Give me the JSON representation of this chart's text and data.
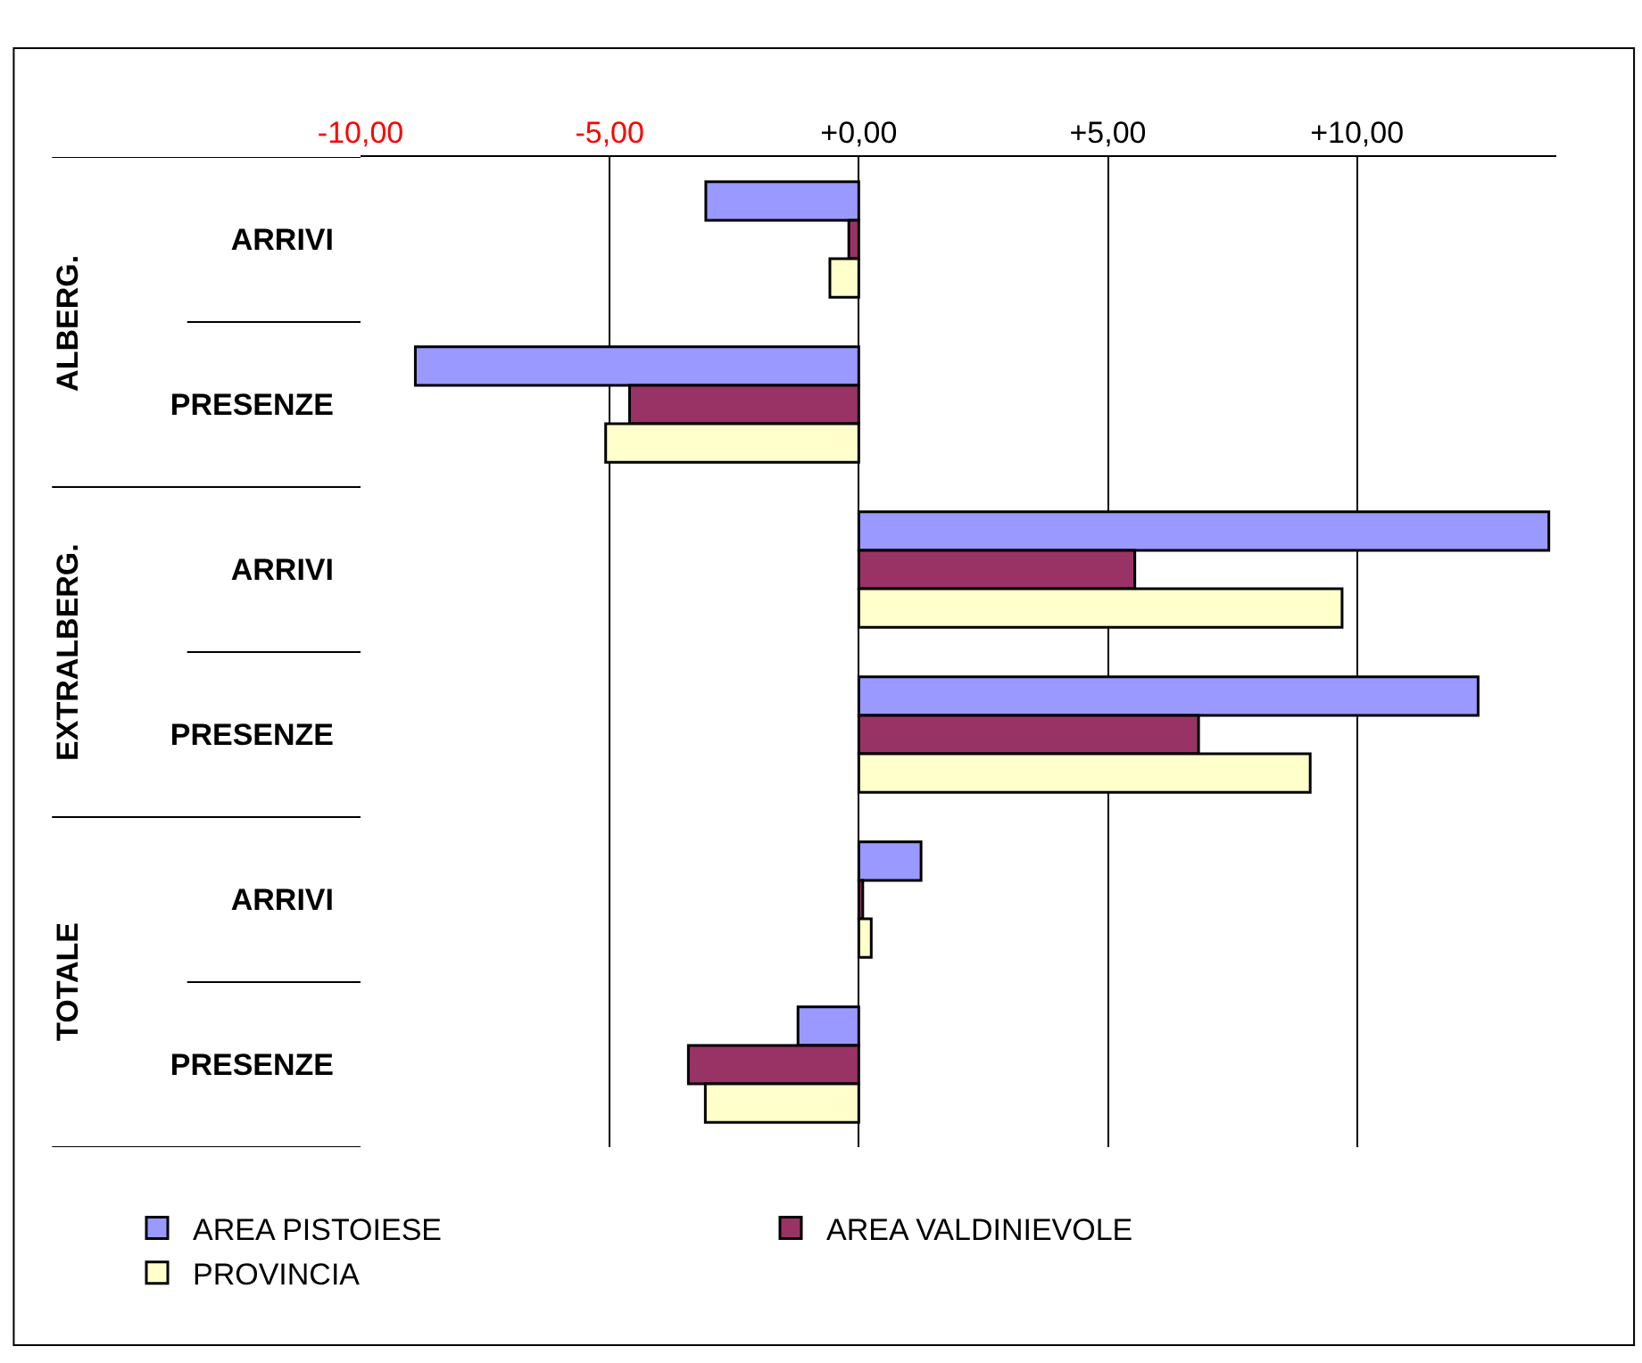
{
  "chart_data": {
    "type": "bar",
    "orientation": "horizontal",
    "categories": [
      "ARRIVI",
      "PRESENZE",
      "ARRIVI",
      "PRESENZE",
      "ARRIVI",
      "PRESENZE"
    ],
    "annotations": [
      "ALBERG.",
      "EXTRALBERG.",
      "TOTALE"
    ],
    "series": [
      {
        "name": "AREA PISTOIESE",
        "color": "#9999ff",
        "values": [
          -3.07,
          -8.9,
          13.85,
          12.43,
          1.25,
          -1.22
        ]
      },
      {
        "name": "AREA VALDINIEVOLE",
        "color": "#993366",
        "values": [
          -0.2,
          -4.6,
          5.54,
          6.82,
          0.08,
          -3.42
        ]
      },
      {
        "name": "PROVINCIA",
        "color": "#ffffcc",
        "values": [
          -0.58,
          -5.08,
          9.7,
          9.06,
          0.25,
          -3.08
        ]
      }
    ],
    "xlim": [
      -10,
      14
    ],
    "xticks": [
      {
        "value": -10,
        "label": "-10,00"
      },
      {
        "value": -5,
        "label": "-5,00"
      },
      {
        "value": 0,
        "label": "+0,00"
      },
      {
        "value": 5,
        "label": "+5,00"
      },
      {
        "value": 10,
        "label": "+10,00"
      }
    ],
    "grid": "x",
    "legend": "bottom"
  }
}
